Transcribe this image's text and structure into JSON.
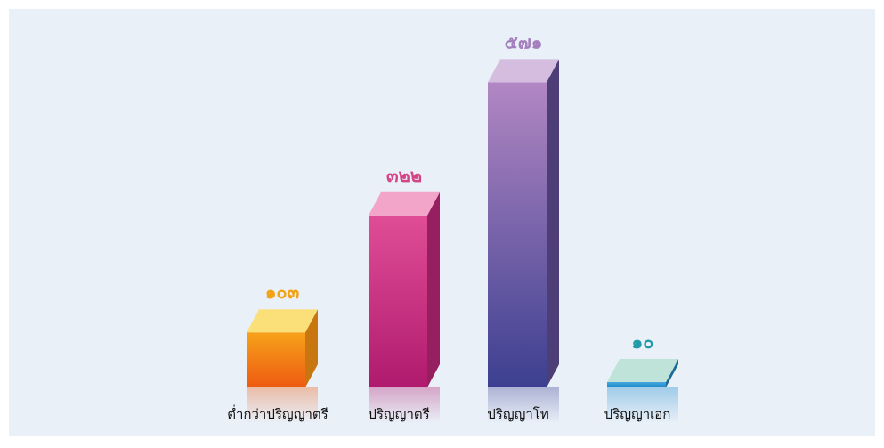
{
  "chart_data": {
    "type": "bar",
    "style": "3d",
    "title": "",
    "xlabel": "",
    "ylabel": "",
    "grid": false,
    "legend": "none",
    "categories": [
      "ต่ำกว่าปริญญาตรี",
      "ปริญญาตรี",
      "ปริญญาโท",
      "ปริญญาเอก"
    ],
    "values": [
      103,
      322,
      571,
      10
    ],
    "value_labels": [
      "๑๐๓",
      "๓๒๒",
      "๕๗๑",
      "๑๐"
    ],
    "colors": [
      {
        "top": "#fbe07a",
        "front_top": "#f6a21a",
        "front_bottom": "#ee5a12",
        "side": "#c8760f",
        "label": "#f2a212"
      },
      {
        "top": "#f3a5c9",
        "front_top": "#e04d96",
        "front_bottom": "#b01a6e",
        "side": "#96205f",
        "label": "#d44587"
      },
      {
        "top": "#d5bde0",
        "front_top": "#b287c3",
        "front_bottom": "#3c3f90",
        "side": "#4e3e78",
        "label": "#a47fbd"
      },
      {
        "top": "#bfe3d9",
        "front_top": "#47a7df",
        "front_bottom": "#1a87c9",
        "side": "#1a6c96",
        "label": "#1f9aa8"
      }
    ]
  }
}
